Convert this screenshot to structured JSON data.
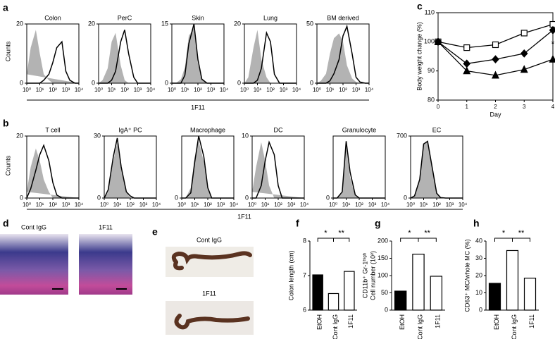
{
  "figure": {
    "labels": [
      "a",
      "b",
      "c",
      "d",
      "e",
      "f",
      "g",
      "h"
    ],
    "row_a": {
      "ylabel": "Counts",
      "xlabel": "1F11"
    },
    "row_b": {
      "ylabel": "Counts",
      "xlabel": "1F11"
    },
    "d": {
      "images": [
        "Cont IgG",
        "1F11"
      ]
    },
    "e": {
      "images": [
        "Cont IgG",
        "1F11"
      ]
    }
  },
  "chart_data": [
    {
      "type": "area",
      "title": "Colon",
      "x": [
        1,
        2,
        5,
        10,
        20,
        50,
        100,
        200,
        500,
        1000,
        2000,
        5000,
        10000
      ],
      "xscale": "log",
      "xlim": [
        1,
        10000
      ],
      "xticks": [
        {
          "value": 1,
          "label": "10⁰"
        },
        {
          "value": 10,
          "label": "10¹"
        },
        {
          "value": 100,
          "label": "10²"
        },
        {
          "value": 1000,
          "label": "10³"
        },
        {
          "value": 10000,
          "label": "10⁴"
        }
      ],
      "ylim": [
        0,
        20
      ],
      "yticks": [
        0,
        20
      ],
      "series": [
        {
          "color": "#b3b3b3",
          "fill": true,
          "values": [
            3,
            12,
            18,
            10,
            3,
            1,
            0,
            0,
            0,
            0,
            0,
            0,
            0
          ]
        },
        {
          "color": "#000000",
          "fill": false,
          "values": [
            0,
            0,
            0,
            0,
            1,
            3,
            7,
            12,
            14,
            4,
            1,
            0,
            0
          ]
        }
      ]
    },
    {
      "type": "area",
      "title": "PerC",
      "x": [
        1,
        2,
        5,
        10,
        20,
        50,
        100,
        200,
        500,
        1000,
        2000,
        5000,
        10000
      ],
      "xscale": "log",
      "xlim": [
        1,
        10000
      ],
      "xticks": [
        {
          "value": 1,
          "label": "10⁰"
        },
        {
          "value": 10,
          "label": "10¹"
        },
        {
          "value": 100,
          "label": "10²"
        },
        {
          "value": 1000,
          "label": "10³"
        },
        {
          "value": 10000,
          "label": "10⁴"
        }
      ],
      "ylim": [
        0,
        20
      ],
      "yticks": [
        0,
        20
      ],
      "series": [
        {
          "color": "#b3b3b3",
          "fill": true,
          "values": [
            0,
            1,
            5,
            14,
            17,
            6,
            1,
            0,
            0,
            0,
            0,
            0,
            0
          ]
        },
        {
          "color": "#000000",
          "fill": false,
          "values": [
            0,
            0,
            0,
            1,
            4,
            14,
            18,
            10,
            2,
            0,
            0,
            0,
            0
          ]
        }
      ]
    },
    {
      "type": "area",
      "title": "Skin",
      "x": [
        1,
        2,
        5,
        10,
        20,
        50,
        100,
        200,
        500,
        1000,
        2000,
        5000,
        10000
      ],
      "xscale": "log",
      "xlim": [
        1,
        10000
      ],
      "xticks": [
        {
          "value": 1,
          "label": "10⁰"
        },
        {
          "value": 10,
          "label": "10¹"
        },
        {
          "value": 100,
          "label": "10²"
        },
        {
          "value": 1000,
          "label": "10³"
        },
        {
          "value": 10000,
          "label": "10⁴"
        }
      ],
      "ylim": [
        0,
        15
      ],
      "yticks": [
        0,
        15
      ],
      "series": [
        {
          "color": "#b3b3b3",
          "fill": true,
          "values": [
            0,
            0,
            1,
            4,
            12,
            14,
            5,
            1,
            0,
            0,
            0,
            0,
            0
          ]
        },
        {
          "color": "#000000",
          "fill": false,
          "values": [
            0,
            0,
            0,
            2,
            10,
            15,
            6,
            1,
            0,
            0,
            0,
            0,
            0
          ]
        }
      ]
    },
    {
      "type": "area",
      "title": "Lung",
      "x": [
        1,
        2,
        5,
        10,
        20,
        50,
        100,
        200,
        500,
        1000,
        2000,
        5000,
        10000
      ],
      "xscale": "log",
      "xlim": [
        1,
        10000
      ],
      "xticks": [
        {
          "value": 1,
          "label": "10⁰"
        },
        {
          "value": 10,
          "label": "10¹"
        },
        {
          "value": 100,
          "label": "10²"
        },
        {
          "value": 1000,
          "label": "10³"
        },
        {
          "value": 10000,
          "label": "10⁴"
        }
      ],
      "ylim": [
        0,
        20
      ],
      "yticks": [
        0,
        20
      ],
      "series": [
        {
          "color": "#b3b3b3",
          "fill": true,
          "values": [
            0,
            2,
            12,
            18,
            8,
            2,
            0,
            0,
            0,
            0,
            0,
            0,
            0
          ]
        },
        {
          "color": "#000000",
          "fill": false,
          "values": [
            0,
            0,
            0,
            1,
            5,
            17,
            14,
            3,
            0,
            0,
            0,
            0,
            0
          ]
        }
      ]
    },
    {
      "type": "area",
      "title": "BM derived",
      "x": [
        1,
        2,
        5,
        10,
        20,
        50,
        100,
        200,
        500,
        1000,
        2000,
        5000,
        10000
      ],
      "xscale": "log",
      "xlim": [
        1,
        10000
      ],
      "xticks": [
        {
          "value": 1,
          "label": "10⁰"
        },
        {
          "value": 10,
          "label": "10¹"
        },
        {
          "value": 100,
          "label": "10²"
        },
        {
          "value": 1000,
          "label": "10³"
        },
        {
          "value": 10000,
          "label": "10⁴"
        }
      ],
      "ylim": [
        0,
        50
      ],
      "yticks": [
        0,
        50
      ],
      "series": [
        {
          "color": "#b3b3b3",
          "fill": true,
          "values": [
            0,
            2,
            8,
            25,
            38,
            42,
            35,
            15,
            4,
            1,
            0,
            0,
            0
          ]
        },
        {
          "color": "#000000",
          "fill": false,
          "values": [
            0,
            0,
            0,
            2,
            8,
            20,
            40,
            48,
            25,
            5,
            1,
            0,
            0
          ]
        }
      ]
    },
    {
      "type": "area",
      "title": "T cell",
      "x": [
        1,
        2,
        5,
        10,
        20,
        50,
        100,
        200,
        500,
        1000,
        2000,
        5000,
        10000
      ],
      "xscale": "log",
      "xlim": [
        1,
        10000
      ],
      "xticks": [
        {
          "value": 1,
          "label": "10⁰"
        },
        {
          "value": 10,
          "label": "10¹"
        },
        {
          "value": 100,
          "label": "10²"
        },
        {
          "value": 1000,
          "label": "10³"
        },
        {
          "value": 10000,
          "label": "10⁴"
        }
      ],
      "ylim": [
        0,
        20
      ],
      "yticks": [
        0,
        20
      ],
      "series": [
        {
          "color": "#b3b3b3",
          "fill": true,
          "values": [
            2,
            10,
            16,
            12,
            6,
            2,
            0,
            0,
            0,
            0,
            0,
            0,
            0
          ]
        },
        {
          "color": "#000000",
          "fill": false,
          "values": [
            0,
            3,
            9,
            14,
            17,
            12,
            5,
            1,
            0,
            0,
            0,
            0,
            0
          ]
        }
      ]
    },
    {
      "type": "area",
      "title": "IgA⁺ PC",
      "x": [
        1,
        2,
        5,
        10,
        20,
        50,
        100,
        200,
        500,
        1000,
        2000,
        5000,
        10000
      ],
      "xscale": "log",
      "xlim": [
        1,
        10000
      ],
      "xticks": [
        {
          "value": 1,
          "label": "10⁰"
        },
        {
          "value": 10,
          "label": "10¹"
        },
        {
          "value": 100,
          "label": "10²"
        },
        {
          "value": 1000,
          "label": "10³"
        },
        {
          "value": 10000,
          "label": "10⁴"
        }
      ],
      "ylim": [
        0,
        30
      ],
      "yticks": [
        0,
        30
      ],
      "series": [
        {
          "color": "#b3b3b3",
          "fill": true,
          "values": [
            0,
            3,
            18,
            27,
            14,
            3,
            0,
            0,
            0,
            0,
            0,
            0,
            0
          ]
        },
        {
          "color": "#000000",
          "fill": false,
          "values": [
            0,
            4,
            20,
            29,
            15,
            3,
            1,
            0,
            0,
            0,
            0,
            0,
            0
          ]
        }
      ]
    },
    {
      "type": "area",
      "title": "Macrophage",
      "x": [
        1,
        2,
        5,
        10,
        20,
        50,
        100,
        200,
        500,
        1000,
        2000,
        5000,
        10000
      ],
      "xscale": "log",
      "xlim": [
        1,
        10000
      ],
      "xticks": [
        {
          "value": 1,
          "label": "10⁰"
        },
        {
          "value": 10,
          "label": "10¹"
        },
        {
          "value": 100,
          "label": "10²"
        },
        {
          "value": 1000,
          "label": "10³"
        },
        {
          "value": 10000,
          "label": "10⁴"
        }
      ],
      "ylim": [
        0,
        12
      ],
      "yticks": [
        0
      ],
      "series": [
        {
          "color": "#b3b3b3",
          "fill": true,
          "values": [
            0,
            0,
            2,
            8,
            11,
            7,
            2,
            0,
            0,
            0,
            0,
            0,
            0
          ]
        },
        {
          "color": "#000000",
          "fill": false,
          "values": [
            0,
            0,
            1,
            7,
            12,
            8,
            2,
            0,
            0,
            0,
            0,
            0,
            0
          ]
        }
      ]
    },
    {
      "type": "area",
      "title": "DC",
      "x": [
        1,
        2,
        5,
        10,
        20,
        50,
        100,
        200,
        500,
        1000,
        2000,
        5000,
        10000
      ],
      "xscale": "log",
      "xlim": [
        1,
        10000
      ],
      "xticks": [
        {
          "value": 1,
          "label": "10⁰"
        },
        {
          "value": 10,
          "label": "10¹"
        },
        {
          "value": 100,
          "label": "10²"
        },
        {
          "value": 1000,
          "label": "10³"
        },
        {
          "value": 10000,
          "label": "10⁴"
        }
      ],
      "ylim": [
        0,
        10
      ],
      "yticks": [
        0,
        10
      ],
      "series": [
        {
          "color": "#b3b3b3",
          "fill": true,
          "values": [
            1,
            5,
            9,
            6,
            2,
            0,
            0,
            0,
            0,
            0,
            0,
            0,
            0
          ]
        },
        {
          "color": "#000000",
          "fill": false,
          "values": [
            0,
            0,
            2,
            6,
            9,
            7,
            2,
            0,
            0,
            0,
            0,
            0,
            0
          ]
        }
      ]
    },
    {
      "type": "area",
      "title": "Granulocyte",
      "x": [
        1,
        2,
        5,
        10,
        20,
        50,
        100,
        200,
        500,
        1000,
        2000,
        5000,
        10000
      ],
      "xscale": "log",
      "xlim": [
        1,
        10000
      ],
      "xticks": [
        {
          "value": 1,
          "label": "10⁰"
        },
        {
          "value": 10,
          "label": "10¹"
        },
        {
          "value": 100,
          "label": "10²"
        },
        {
          "value": 1000,
          "label": "10³"
        },
        {
          "value": 10000,
          "label": "10⁴"
        }
      ],
      "ylim": [
        0,
        60
      ],
      "yticks": [
        0
      ],
      "series": [
        {
          "color": "#b3b3b3",
          "fill": true,
          "values": [
            0,
            0,
            5,
            50,
            20,
            2,
            0,
            0,
            0,
            0,
            0,
            0,
            0
          ]
        },
        {
          "color": "#000000",
          "fill": false,
          "values": [
            0,
            0,
            6,
            55,
            25,
            3,
            0,
            0,
            0,
            0,
            0,
            0,
            0
          ]
        }
      ]
    },
    {
      "type": "area",
      "title": "EC",
      "x": [
        1,
        2,
        5,
        10,
        20,
        50,
        100,
        200,
        500,
        1000,
        2000,
        5000,
        10000
      ],
      "xscale": "log",
      "xlim": [
        1,
        10000
      ],
      "xticks": [
        {
          "value": 1,
          "label": "10⁰"
        },
        {
          "value": 10,
          "label": "10¹"
        },
        {
          "value": 100,
          "label": "10²"
        },
        {
          "value": 1000,
          "label": "10³"
        },
        {
          "value": 10000,
          "label": "10⁴"
        }
      ],
      "ylim": [
        0,
        700
      ],
      "yticks": [
        0,
        700
      ],
      "series": [
        {
          "color": "#b3b3b3",
          "fill": true,
          "values": [
            0,
            20,
            200,
            600,
            650,
            300,
            50,
            5,
            0,
            0,
            0,
            0,
            0
          ]
        },
        {
          "color": "#000000",
          "fill": false,
          "values": [
            0,
            25,
            210,
            610,
            640,
            310,
            55,
            5,
            0,
            0,
            0,
            0,
            0
          ]
        }
      ]
    },
    {
      "type": "line",
      "ylabel": "Body weight change (%)",
      "xlabel": "Day",
      "x": [
        0,
        1,
        2,
        3,
        4
      ],
      "xlim": [
        0,
        4
      ],
      "xticks": [
        0,
        1,
        2,
        3,
        4
      ],
      "ylim": [
        80,
        110
      ],
      "yticks": [
        80,
        90,
        100,
        110
      ],
      "series": [
        {
          "color": "#000000",
          "marker": "square",
          "markerfill": "#ffffff",
          "values": [
            100,
            98,
            99,
            103,
            106
          ]
        },
        {
          "color": "#000000",
          "marker": "diamond",
          "markerfill": "#000000",
          "values": [
            100,
            92.5,
            94,
            96,
            104
          ]
        },
        {
          "color": "#000000",
          "marker": "triangle",
          "markerfill": "#000000",
          "values": [
            100,
            90,
            88.5,
            90.5,
            94
          ]
        }
      ],
      "annotations": [
        {
          "text": "*",
          "x": 4,
          "y": 99
        }
      ]
    },
    {
      "type": "bar",
      "ylabel": [
        "Colon length (cm)"
      ],
      "categories": [
        "EtOH",
        "Cont IgG",
        "1F11"
      ],
      "values": [
        7.02,
        6.48,
        7.12
      ],
      "colors": [
        "#000000",
        "#ffffff",
        "#ffffff"
      ],
      "ylim": [
        6,
        8
      ],
      "yticks": [
        6,
        7,
        8
      ],
      "annotations": [
        {
          "text": "*",
          "between": [
            0,
            1
          ]
        },
        {
          "text": "**",
          "between": [
            1,
            2
          ]
        }
      ]
    },
    {
      "type": "bar",
      "ylabel": [
        "CD11b⁺ Gr-1ʰⁱᵍʰ",
        "Cell number (10²)"
      ],
      "categories": [
        "EtOH",
        "Cont IgG",
        "1F11"
      ],
      "values": [
        55,
        162,
        98
      ],
      "colors": [
        "#000000",
        "#ffffff",
        "#ffffff"
      ],
      "ylim": [
        0,
        200
      ],
      "yticks": [
        0,
        50,
        100,
        150,
        200
      ],
      "annotations": [
        {
          "text": "*",
          "between": [
            0,
            1
          ]
        },
        {
          "text": "**",
          "between": [
            1,
            2
          ]
        }
      ]
    },
    {
      "type": "bar",
      "ylabel": [
        "CD63⁺ MC/whole MC (%)"
      ],
      "categories": [
        "EtOH",
        "Cont IgG",
        "1F11"
      ],
      "values": [
        15.5,
        34.5,
        18.5
      ],
      "colors": [
        "#000000",
        "#ffffff",
        "#ffffff"
      ],
      "ylim": [
        0,
        40
      ],
      "yticks": [
        0,
        10,
        20,
        30,
        40
      ],
      "annotations": [
        {
          "text": "*",
          "between": [
            0,
            1
          ]
        },
        {
          "text": "**",
          "between": [
            1,
            2
          ]
        }
      ]
    }
  ]
}
